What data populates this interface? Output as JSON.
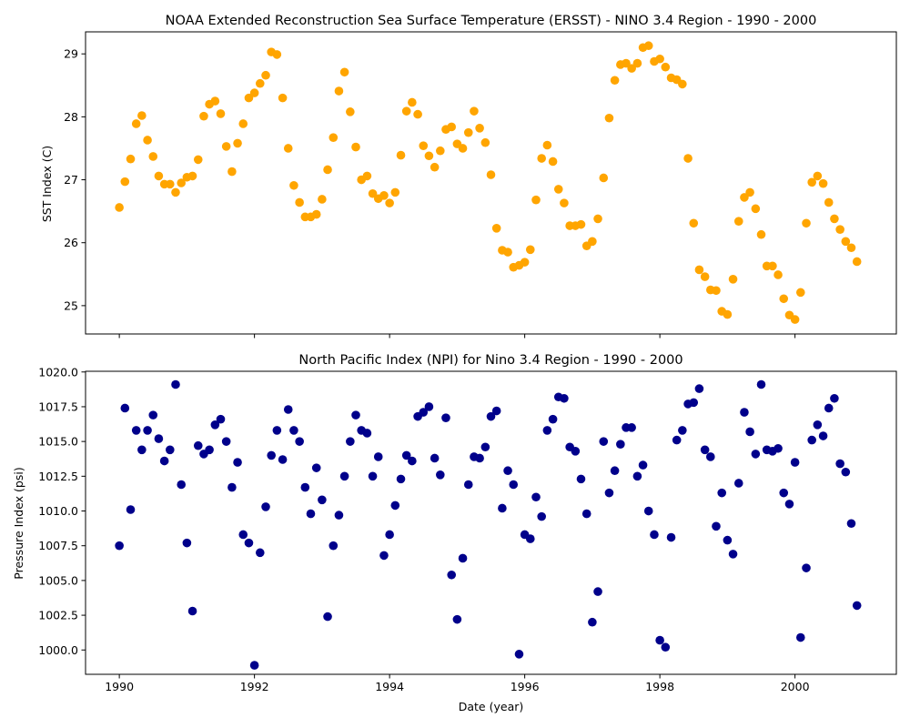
{
  "chart_data": [
    {
      "type": "scatter",
      "title": "NOAA Extended Reconstruction Sea Surface Temperature (ERSST) - NINO 3.4 Region - 1990 - 2000",
      "xlabel": "",
      "ylabel": "SST Index (C)",
      "xlim": [
        1989.5,
        2001.5
      ],
      "ylim": [
        24.55,
        29.35
      ],
      "x_ticks": [
        1990,
        1992,
        1994,
        1996,
        1998,
        2000
      ],
      "x_tick_labels": [
        "",
        "",
        "",
        "",
        "",
        ""
      ],
      "y_ticks": [
        25,
        26,
        27,
        28,
        29
      ],
      "y_tick_labels": [
        "25",
        "26",
        "27",
        "28",
        "29"
      ],
      "grid": false,
      "legend": "none",
      "marker_color": "#FFA500",
      "series": [
        {
          "x": [
            1990.0,
            1990.083,
            1990.167,
            1990.25,
            1990.333,
            1990.417,
            1990.5,
            1990.583,
            1990.667,
            1990.75,
            1990.833,
            1990.917,
            1991.0,
            1991.083,
            1991.167,
            1991.25,
            1991.333,
            1991.417,
            1991.5,
            1991.583,
            1991.667,
            1991.75,
            1991.833,
            1991.917,
            1992.0,
            1992.083,
            1992.167,
            1992.25,
            1992.333,
            1992.417,
            1992.5,
            1992.583,
            1992.667,
            1992.75,
            1992.833,
            1992.917,
            1993.0,
            1993.083,
            1993.167,
            1993.25,
            1993.333,
            1993.417,
            1993.5,
            1993.583,
            1993.667,
            1993.75,
            1993.833,
            1993.917,
            1994.0,
            1994.083,
            1994.167,
            1994.25,
            1994.333,
            1994.417,
            1994.5,
            1994.583,
            1994.667,
            1994.75,
            1994.833,
            1994.917,
            1995.0,
            1995.083,
            1995.167,
            1995.25,
            1995.333,
            1995.417,
            1995.5,
            1995.583,
            1995.667,
            1995.75,
            1995.833,
            1995.917,
            1996.0,
            1996.083,
            1996.167,
            1996.25,
            1996.333,
            1996.417,
            1996.5,
            1996.583,
            1996.667,
            1996.75,
            1996.833,
            1996.917,
            1997.0,
            1997.083,
            1997.167,
            1997.25,
            1997.333,
            1997.417,
            1997.5,
            1997.583,
            1997.667,
            1997.75,
            1997.833,
            1997.917,
            1998.0,
            1998.083,
            1998.167,
            1998.25,
            1998.333,
            1998.417,
            1998.5,
            1998.583,
            1998.667,
            1998.75,
            1998.833,
            1998.917,
            1999.0,
            1999.083,
            1999.167,
            1999.25,
            1999.333,
            1999.417,
            1999.5,
            1999.583,
            1999.667,
            1999.75,
            1999.833,
            1999.917,
            2000.0,
            2000.083,
            2000.167,
            2000.25,
            2000.333,
            2000.417,
            2000.5,
            2000.583,
            2000.667,
            2000.75,
            2000.833,
            2000.917
          ],
          "y": [
            26.56,
            26.97,
            27.33,
            27.89,
            28.02,
            27.63,
            27.37,
            27.06,
            26.93,
            26.93,
            26.8,
            26.95,
            27.04,
            27.06,
            27.32,
            28.01,
            28.2,
            28.25,
            28.05,
            27.53,
            27.13,
            27.58,
            27.89,
            28.3,
            28.38,
            28.53,
            28.66,
            29.03,
            28.99,
            28.3,
            27.5,
            26.91,
            26.64,
            26.41,
            26.41,
            26.45,
            26.69,
            27.16,
            27.67,
            28.41,
            28.71,
            28.08,
            27.52,
            27.0,
            27.06,
            26.78,
            26.7,
            26.75,
            26.63,
            26.8,
            27.39,
            28.09,
            28.23,
            28.04,
            27.54,
            27.38,
            27.2,
            27.46,
            27.8,
            27.84,
            27.57,
            27.5,
            27.75,
            28.09,
            27.82,
            27.59,
            27.08,
            26.23,
            25.88,
            25.85,
            25.61,
            25.64,
            25.69,
            25.89,
            26.68,
            27.34,
            27.55,
            27.29,
            26.85,
            26.63,
            26.27,
            26.27,
            26.29,
            25.95,
            26.02,
            26.38,
            27.03,
            27.98,
            28.58,
            28.83,
            28.85,
            28.77,
            28.85,
            29.1,
            29.13,
            28.88,
            28.92,
            28.79,
            28.62,
            28.59,
            28.52,
            27.34,
            26.31,
            25.57,
            25.46,
            25.25,
            25.24,
            24.91,
            24.86,
            25.42,
            26.34,
            26.72,
            26.8,
            26.54,
            26.13,
            25.63,
            25.63,
            25.49,
            25.11,
            24.85,
            24.78,
            25.21,
            26.31,
            26.96,
            27.06,
            26.94,
            26.64,
            26.38,
            26.21,
            26.02,
            25.92,
            25.7
          ]
        }
      ]
    },
    {
      "type": "scatter",
      "title": "North Pacific Index (NPI) for Nino 3.4 Region - 1990 - 2000",
      "xlabel": "Date (year)",
      "ylabel": "Pressure Index (psi)",
      "xlim": [
        1989.5,
        2001.5
      ],
      "ylim": [
        998.25,
        1020.05
      ],
      "x_ticks": [
        1990,
        1992,
        1994,
        1996,
        1998,
        2000
      ],
      "x_tick_labels": [
        "1990",
        "1992",
        "1994",
        "1996",
        "1998",
        "2000"
      ],
      "y_ticks": [
        1000.0,
        1002.5,
        1005.0,
        1007.5,
        1010.0,
        1012.5,
        1015.0,
        1017.5,
        1020.0
      ],
      "y_tick_labels": [
        "1000.0",
        "1002.5",
        "1005.0",
        "1007.5",
        "1010.0",
        "1012.5",
        "1015.0",
        "1017.5",
        "1020.0"
      ],
      "grid": false,
      "legend": "none",
      "marker_color": "#00008B",
      "series": [
        {
          "x": [
            1990.0,
            1990.083,
            1990.167,
            1990.25,
            1990.333,
            1990.417,
            1990.5,
            1990.583,
            1990.667,
            1990.75,
            1990.833,
            1990.917,
            1991.0,
            1991.083,
            1991.167,
            1991.25,
            1991.333,
            1991.417,
            1991.5,
            1991.583,
            1991.667,
            1991.75,
            1991.833,
            1991.917,
            1992.0,
            1992.083,
            1992.167,
            1992.25,
            1992.333,
            1992.417,
            1992.5,
            1992.583,
            1992.667,
            1992.75,
            1992.833,
            1992.917,
            1993.0,
            1993.083,
            1993.167,
            1993.25,
            1993.333,
            1993.417,
            1993.5,
            1993.583,
            1993.667,
            1993.75,
            1993.833,
            1993.917,
            1994.0,
            1994.083,
            1994.167,
            1994.25,
            1994.333,
            1994.417,
            1994.5,
            1994.583,
            1994.667,
            1994.75,
            1994.833,
            1994.917,
            1995.0,
            1995.083,
            1995.167,
            1995.25,
            1995.333,
            1995.417,
            1995.5,
            1995.583,
            1995.667,
            1995.75,
            1995.833,
            1995.917,
            1996.0,
            1996.083,
            1996.167,
            1996.25,
            1996.333,
            1996.417,
            1996.5,
            1996.583,
            1996.667,
            1996.75,
            1996.833,
            1996.917,
            1997.0,
            1997.083,
            1997.167,
            1997.25,
            1997.333,
            1997.417,
            1997.5,
            1997.583,
            1997.667,
            1997.75,
            1997.833,
            1997.917,
            1998.0,
            1998.083,
            1998.167,
            1998.25,
            1998.333,
            1998.417,
            1998.5,
            1998.583,
            1998.667,
            1998.75,
            1998.833,
            1998.917,
            1999.0,
            1999.083,
            1999.167,
            1999.25,
            1999.333,
            1999.417,
            1999.5,
            1999.583,
            1999.667,
            1999.75,
            1999.833,
            1999.917,
            2000.0,
            2000.083,
            2000.167,
            2000.25,
            2000.333,
            2000.417,
            2000.5,
            2000.583,
            2000.667,
            2000.75,
            2000.833,
            2000.917
          ],
          "y": [
            1007.5,
            1017.4,
            1010.1,
            1015.8,
            1014.4,
            1015.8,
            1016.9,
            1015.2,
            1013.6,
            1014.4,
            1019.1,
            1011.9,
            1007.7,
            1002.8,
            1014.7,
            1014.1,
            1014.4,
            1016.2,
            1016.6,
            1015.0,
            1011.7,
            1013.5,
            1008.3,
            1007.7,
            998.9,
            1007.0,
            1010.3,
            1014.0,
            1015.8,
            1013.7,
            1017.3,
            1015.8,
            1015.0,
            1011.7,
            1009.8,
            1013.1,
            1010.8,
            1002.4,
            1007.5,
            1009.7,
            1012.5,
            1015.0,
            1016.9,
            1015.8,
            1015.6,
            1012.5,
            1013.9,
            1006.8,
            1008.3,
            1010.4,
            1012.3,
            1014.0,
            1013.6,
            1016.8,
            1017.1,
            1017.5,
            1013.8,
            1012.6,
            1016.7,
            1005.4,
            1002.2,
            1006.6,
            1011.9,
            1013.9,
            1013.8,
            1014.6,
            1016.8,
            1017.2,
            1010.2,
            1012.9,
            1011.9,
            999.7,
            1008.3,
            1008.0,
            1011.0,
            1009.6,
            1015.8,
            1016.6,
            1018.2,
            1018.1,
            1014.6,
            1014.3,
            1012.3,
            1009.8,
            1002.0,
            1004.2,
            1015.0,
            1011.3,
            1012.9,
            1014.8,
            1016.0,
            1016.0,
            1012.5,
            1013.3,
            1010.0,
            1008.3,
            1000.7,
            1000.2,
            1008.1,
            1015.1,
            1015.8,
            1017.7,
            1017.8,
            1018.8,
            1014.4,
            1013.9,
            1008.9,
            1011.3,
            1007.9,
            1006.9,
            1012.0,
            1017.1,
            1015.7,
            1014.1,
            1019.1,
            1014.4,
            1014.3,
            1014.5,
            1011.3,
            1010.5,
            1013.5,
            1000.9,
            1005.9,
            1015.1,
            1016.2,
            1015.4,
            1017.4,
            1018.1,
            1013.4,
            1012.8,
            1009.1,
            1003.2
          ]
        }
      ]
    }
  ]
}
